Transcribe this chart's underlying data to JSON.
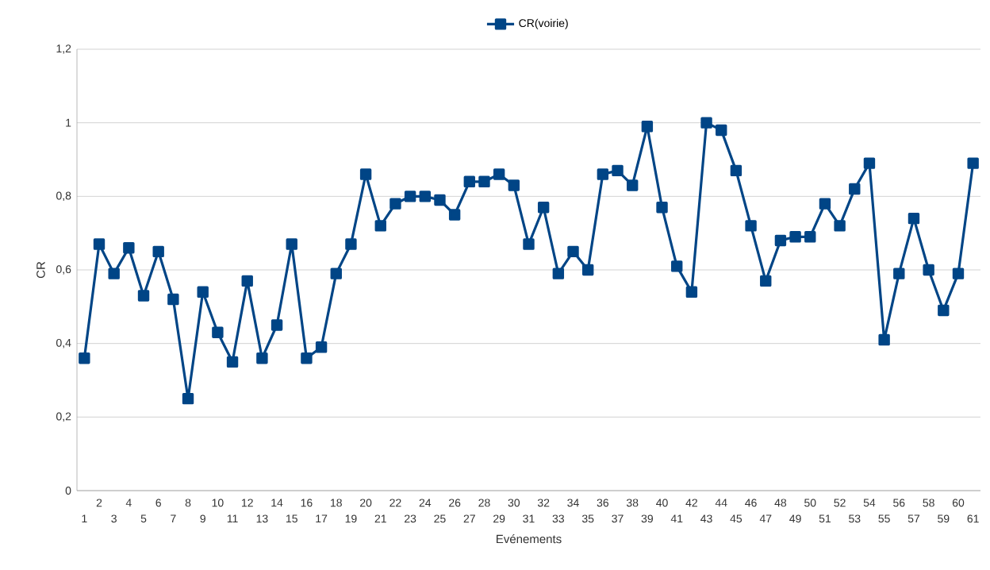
{
  "chart_data": {
    "type": "line",
    "xlabel": "Evénements",
    "ylabel": "CR",
    "categories": [
      "1",
      "2",
      "3",
      "4",
      "5",
      "6",
      "7",
      "8",
      "9",
      "10",
      "11",
      "12",
      "13",
      "14",
      "15",
      "16",
      "17",
      "18",
      "19",
      "20",
      "21",
      "22",
      "23",
      "24",
      "25",
      "26",
      "27",
      "28",
      "29",
      "30",
      "31",
      "32",
      "33",
      "34",
      "35",
      "36",
      "37",
      "38",
      "39",
      "40",
      "41",
      "42",
      "43",
      "44",
      "45",
      "46",
      "47",
      "48",
      "49",
      "50",
      "51",
      "52",
      "53",
      "54",
      "55",
      "56",
      "57",
      "58",
      "59",
      "60",
      "61"
    ],
    "series": [
      {
        "name": "CR(voirie)",
        "color": "#004586",
        "values": [
          0.36,
          0.67,
          0.59,
          0.66,
          0.53,
          0.65,
          0.52,
          0.25,
          0.54,
          0.43,
          0.35,
          0.57,
          0.36,
          0.45,
          0.67,
          0.36,
          0.39,
          0.59,
          0.67,
          0.86,
          0.72,
          0.78,
          0.8,
          0.8,
          0.79,
          0.75,
          0.84,
          0.84,
          0.86,
          0.83,
          0.67,
          0.77,
          0.59,
          0.65,
          0.6,
          0.86,
          0.87,
          0.83,
          0.99,
          0.77,
          0.61,
          0.54,
          1.0,
          0.98,
          0.87,
          0.72,
          0.57,
          0.68,
          0.69,
          0.69,
          0.78,
          0.72,
          0.82,
          0.89,
          0.41,
          0.59,
          0.74,
          0.6,
          0.49,
          0.59,
          0.89
        ]
      }
    ],
    "ylim": [
      0,
      1.2
    ],
    "yticks": [
      0,
      {
        "value": 0.2,
        "label": "0,2"
      },
      {
        "value": 0.4,
        "label": "0,4"
      },
      {
        "value": 0.6,
        "label": "0,6"
      },
      {
        "value": 0.8,
        "label": "0,8"
      },
      1,
      {
        "value": 1.2,
        "label": "1,2"
      }
    ],
    "grid": "y",
    "legend": "top",
    "marker": "square",
    "line_style": "solid"
  }
}
